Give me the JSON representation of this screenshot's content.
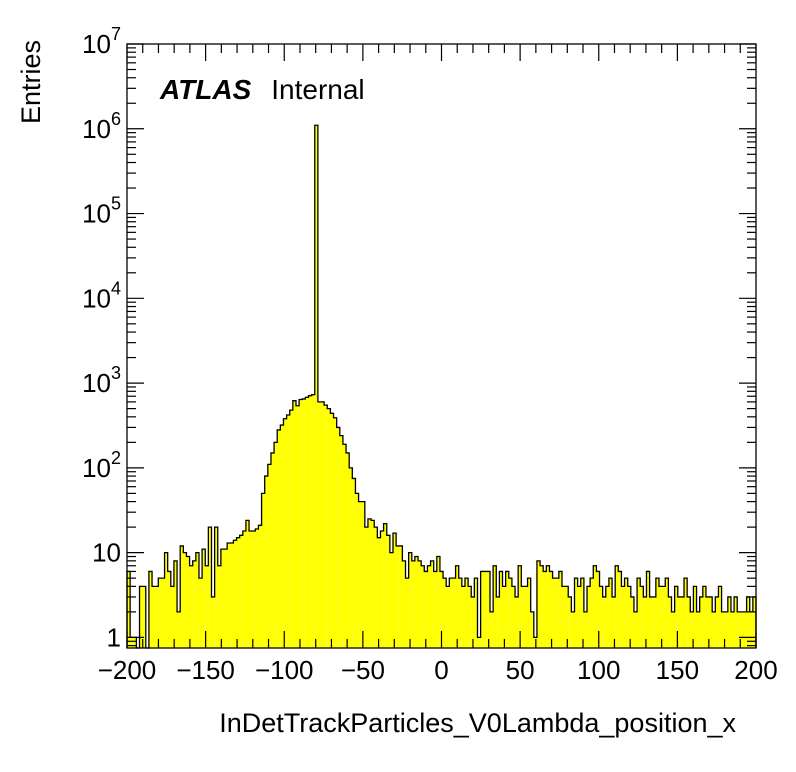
{
  "chart_data": {
    "type": "histogram",
    "xlabel": "InDetTrackParticles_V0Lambda_position_x",
    "ylabel": "Entries",
    "xlim": [
      -200,
      200
    ],
    "ylim": [
      0.75,
      10000000
    ],
    "yscale": "log",
    "bin_width": 4,
    "x_ticks": [
      "−200",
      "−150",
      "−100",
      "−50",
      "0",
      "50",
      "100",
      "150",
      "200"
    ],
    "y_ticks": [
      {
        "value": 1,
        "base": "1",
        "exp": ""
      },
      {
        "value": 10,
        "base": "10",
        "exp": ""
      },
      {
        "value": 100,
        "base": "10",
        "exp": "2"
      },
      {
        "value": 1000,
        "base": "10",
        "exp": "3"
      },
      {
        "value": 10000,
        "base": "10",
        "exp": "4"
      },
      {
        "value": 100000,
        "base": "10",
        "exp": "5"
      },
      {
        "value": 1000000,
        "base": "10",
        "exp": "6"
      },
      {
        "value": 10000000,
        "base": "10",
        "exp": "7"
      }
    ],
    "label_bold": "ATLAS",
    "label_normal": "Internal",
    "fill_color": "#ffff00",
    "line_color": "#000000",
    "values": [
      6,
      1,
      1,
      0,
      4,
      4,
      0,
      6,
      4,
      4,
      5,
      5,
      10,
      6,
      4,
      8,
      2,
      12,
      10,
      9,
      7,
      8,
      10,
      5,
      11,
      7,
      20,
      3,
      20,
      7,
      11,
      11,
      13,
      13,
      14,
      15,
      16,
      18,
      24,
      18,
      18,
      19,
      21,
      50,
      80,
      110,
      150,
      200,
      280,
      320,
      380,
      420,
      480,
      620,
      540,
      640,
      650,
      680,
      710,
      730,
      1100000,
      600,
      600,
      550,
      500,
      440,
      390,
      300,
      240,
      190,
      150,
      100,
      75,
      50,
      40,
      40,
      20,
      25,
      24,
      20,
      15,
      18,
      22,
      16,
      10,
      17,
      12,
      12,
      8,
      5,
      10,
      8,
      9,
      8,
      7,
      6,
      7,
      8,
      6,
      9,
      6,
      5,
      4,
      5,
      5,
      7,
      5,
      4,
      5,
      4,
      3,
      5,
      1,
      6,
      6,
      6,
      2,
      7,
      3,
      6,
      4,
      6,
      5,
      4,
      3,
      7,
      4,
      4,
      5,
      2,
      1,
      8,
      7,
      6,
      7,
      6,
      5,
      5,
      6,
      4,
      4,
      3,
      2,
      5,
      4,
      5,
      2,
      4,
      5,
      7,
      6,
      4,
      3,
      4,
      5,
      3,
      7,
      6,
      4,
      5,
      4,
      3,
      2,
      5,
      4,
      3,
      6,
      3,
      3,
      5,
      4,
      4,
      5,
      3,
      2,
      4,
      3,
      3,
      5,
      3,
      2,
      4,
      2,
      3,
      4,
      3,
      3,
      2,
      3,
      4,
      2,
      2,
      3,
      2,
      3,
      2,
      2,
      2,
      3,
      2,
      3
    ]
  }
}
